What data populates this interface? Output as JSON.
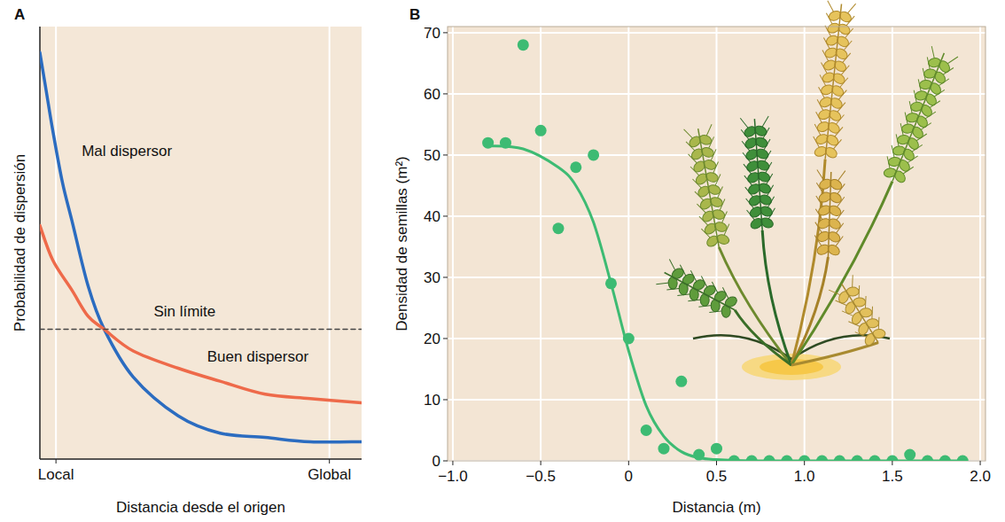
{
  "chart_data": [
    {
      "type": "line",
      "panel": "A",
      "xlabel": "Distancia desde el origen",
      "ylabel": "Probabilidad de dispersión",
      "xlim": [
        0,
        1
      ],
      "ylim": [
        0,
        1
      ],
      "xticks": [
        {
          "value": 0.05,
          "label": "Local"
        },
        {
          "value": 0.9,
          "label": "Global"
        }
      ],
      "yticks": [],
      "tick_labels": "x",
      "grid": true,
      "series": [
        {
          "name": "Mal dispersor",
          "color": "#2b6cc0",
          "x": [
            0,
            0.02,
            0.04,
            0.07,
            0.1,
            0.15,
            0.2,
            0.29,
            0.43,
            0.56,
            0.7,
            0.84,
            1.0
          ],
          "values": [
            0.94,
            0.85,
            0.76,
            0.64,
            0.55,
            0.4,
            0.3,
            0.19,
            0.1,
            0.06,
            0.05,
            0.04,
            0.04
          ]
        },
        {
          "name": "Buen dispersor",
          "color": "#ee6a4a",
          "x": [
            0,
            0.04,
            0.1,
            0.15,
            0.2,
            0.29,
            0.43,
            0.56,
            0.7,
            0.84,
            1.0
          ],
          "values": [
            0.54,
            0.46,
            0.39,
            0.33,
            0.3,
            0.25,
            0.21,
            0.18,
            0.15,
            0.14,
            0.13
          ]
        },
        {
          "name": "Sin límite",
          "color": "#444444",
          "line_style": "dashed",
          "x": [
            0,
            1
          ],
          "values": [
            0.3,
            0.3
          ]
        }
      ]
    },
    {
      "type": "scatter",
      "panel": "B",
      "xlabel": "Distancia (m)",
      "ylabel": "Densidad de semillas (m²)",
      "xlim": [
        -1.03,
        2.03
      ],
      "ylim": [
        0,
        71
      ],
      "xticks": [
        {
          "value": -1,
          "label": "−1.0"
        },
        {
          "value": -0.5,
          "label": "−0.5"
        },
        0,
        0.5,
        {
          "value": 1,
          "label": "1.0"
        },
        1.5,
        {
          "value": 2,
          "label": "2.0"
        }
      ],
      "yticks": [
        0,
        10,
        20,
        30,
        40,
        50,
        60,
        70
      ],
      "grid": true,
      "series": [
        {
          "type": "scatter",
          "color": "#3dbb73",
          "marker": "circle",
          "x": [
            -0.8,
            -0.7,
            -0.6,
            -0.5,
            -0.4,
            -0.3,
            -0.2,
            -0.1,
            0,
            0.1,
            0.2,
            0.3,
            0.4,
            0.5,
            0.6,
            0.7,
            0.8,
            0.9,
            1.0,
            1.1,
            1.2,
            1.3,
            1.4,
            1.5,
            1.6,
            1.7,
            1.8,
            1.9
          ],
          "values": [
            52,
            52,
            68,
            54,
            38,
            48,
            50,
            29,
            20,
            5,
            2,
            13,
            1,
            2,
            0,
            0,
            0,
            0,
            0,
            0,
            0,
            0,
            0,
            0,
            1,
            0,
            0,
            0
          ]
        },
        {
          "type": "line",
          "color": "#3dbb73",
          "x": [
            -0.8,
            -0.6,
            -0.4,
            -0.3,
            -0.2,
            -0.1,
            0,
            0.1,
            0.2,
            0.3,
            0.4,
            0.5,
            0.7,
            1.0,
            1.5,
            1.9
          ],
          "values": [
            51.5,
            51,
            48,
            45,
            39,
            29,
            18,
            9,
            4,
            1.5,
            0.5,
            0.2,
            0,
            0,
            0,
            0
          ]
        }
      ]
    }
  ]
}
